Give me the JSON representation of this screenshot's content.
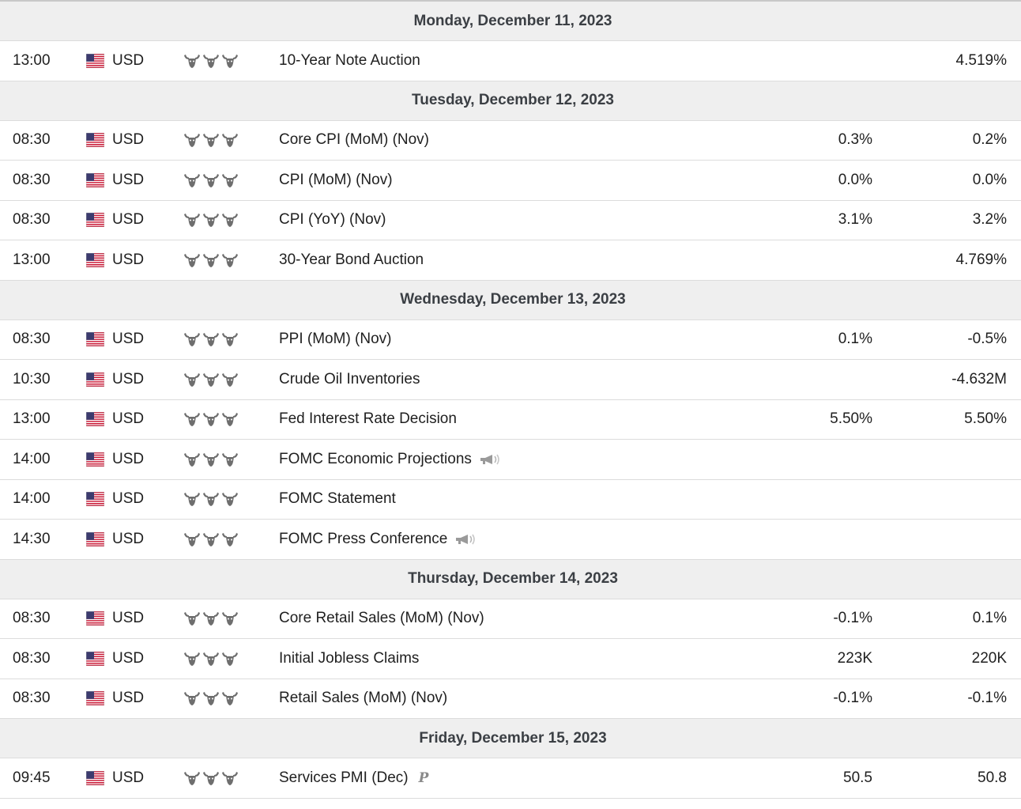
{
  "colors": {
    "header_bg": "#efefef",
    "row_border": "#dcdcdc",
    "bull_icon": "#6e6e6e",
    "flag_red": "#c8102e",
    "flag_blue": "#3c3b6e"
  },
  "days": [
    {
      "label": "Monday, December 11, 2023",
      "events": [
        {
          "time": "13:00",
          "currency": "USD",
          "event": "10-Year Note Auction",
          "actual": "",
          "previous": "4.519%"
        }
      ]
    },
    {
      "label": "Tuesday, December 12, 2023",
      "events": [
        {
          "time": "08:30",
          "currency": "USD",
          "event": "Core CPI (MoM) (Nov)",
          "actual": "0.3%",
          "previous": "0.2%"
        },
        {
          "time": "08:30",
          "currency": "USD",
          "event": "CPI (MoM) (Nov)",
          "actual": "0.0%",
          "previous": "0.0%"
        },
        {
          "time": "08:30",
          "currency": "USD",
          "event": "CPI (YoY) (Nov)",
          "actual": "3.1%",
          "previous": "3.2%"
        },
        {
          "time": "13:00",
          "currency": "USD",
          "event": "30-Year Bond Auction",
          "actual": "",
          "previous": "4.769%"
        }
      ]
    },
    {
      "label": "Wednesday, December 13, 2023",
      "events": [
        {
          "time": "08:30",
          "currency": "USD",
          "event": "PPI (MoM) (Nov)",
          "actual": "0.1%",
          "previous": "-0.5%"
        },
        {
          "time": "10:30",
          "currency": "USD",
          "event": "Crude Oil Inventories",
          "actual": "",
          "previous": "-4.632M"
        },
        {
          "time": "13:00",
          "currency": "USD",
          "event": "Fed Interest Rate Decision",
          "actual": "5.50%",
          "previous": "5.50%"
        },
        {
          "time": "14:00",
          "currency": "USD",
          "event": "FOMC Economic Projections",
          "actual": "",
          "previous": "",
          "speech": true
        },
        {
          "time": "14:00",
          "currency": "USD",
          "event": "FOMC Statement",
          "actual": "",
          "previous": ""
        },
        {
          "time": "14:30",
          "currency": "USD",
          "event": "FOMC Press Conference",
          "actual": "",
          "previous": "",
          "speech": true
        }
      ]
    },
    {
      "label": "Thursday, December 14, 2023",
      "events": [
        {
          "time": "08:30",
          "currency": "USD",
          "event": "Core Retail Sales (MoM) (Nov)",
          "actual": "-0.1%",
          "previous": "0.1%"
        },
        {
          "time": "08:30",
          "currency": "USD",
          "event": "Initial Jobless Claims",
          "actual": "223K",
          "previous": "220K"
        },
        {
          "time": "08:30",
          "currency": "USD",
          "event": "Retail Sales (MoM) (Nov)",
          "actual": "-0.1%",
          "previous": "-0.1%"
        }
      ]
    },
    {
      "label": "Friday, December 15, 2023",
      "events": [
        {
          "time": "09:45",
          "currency": "USD",
          "event": "Services PMI (Dec)",
          "actual": "50.5",
          "previous": "50.8",
          "preliminary_mark": "P"
        }
      ]
    }
  ],
  "icons": {
    "flag": "us-flag-icon",
    "importance": "bull-head-icon",
    "speech": "speaker-icon"
  }
}
